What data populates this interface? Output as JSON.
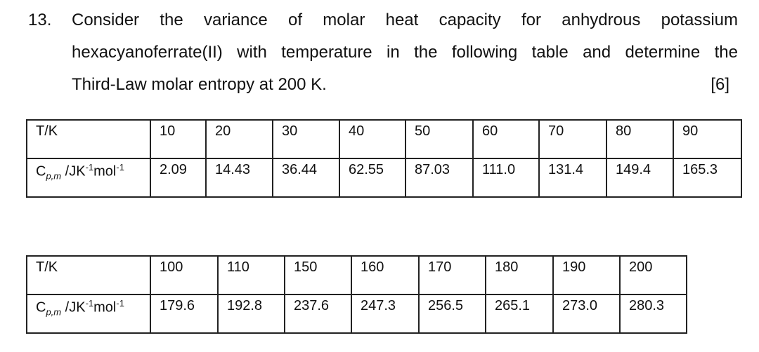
{
  "question": {
    "number": "13.",
    "line1": "Consider the variance of molar heat capacity for anhydrous potassium",
    "line2": "hexacyanoferrate(II) with temperature in the following table and determine the",
    "line3": "Third-Law molar entropy at 200 K.",
    "marks": "[6]"
  },
  "row_labels": {
    "temperature": "T/K",
    "cp_prefix": "C",
    "cp_sub": "p,m",
    "cp_unit_a": " /JK",
    "cp_exp1": "-1",
    "cp_unit_b": "mol",
    "cp_exp2": "-1"
  },
  "table1": {
    "temperatures": [
      "10",
      "20",
      "30",
      "40",
      "50",
      "60",
      "70",
      "80",
      "90"
    ],
    "cp_values": [
      "2.09",
      "14.43",
      "36.44",
      "62.55",
      "87.03",
      "111.0",
      "131.4",
      "149.4",
      "165.3"
    ]
  },
  "table2": {
    "temperatures": [
      "100",
      "110",
      "150",
      "160",
      "170",
      "180",
      "190",
      "200"
    ],
    "cp_values": [
      "179.6",
      "192.8",
      "237.6",
      "247.3",
      "256.5",
      "265.1",
      "273.0",
      "280.3"
    ]
  }
}
